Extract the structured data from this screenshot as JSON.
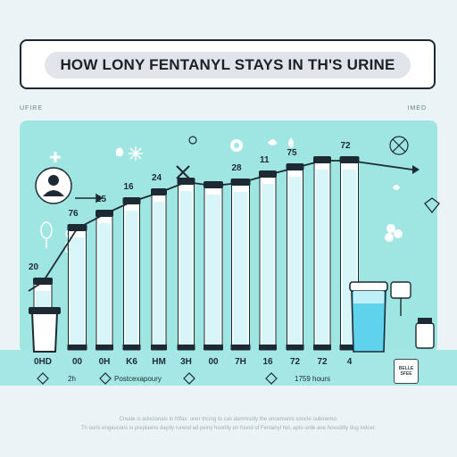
{
  "header": {
    "title": "HOW LONY FENTANYL STAYS IN TH'S URINE"
  },
  "corner_labels": {
    "left": "UFIRE",
    "right": "IMED"
  },
  "chart_data": {
    "type": "bar",
    "categories": [
      "0HD",
      "00",
      "0H",
      "K6",
      "HM",
      "3H",
      "00",
      "7H",
      "16",
      "72",
      "72",
      "4"
    ],
    "values": [
      20,
      76,
      25,
      16,
      24,
      null,
      null,
      28,
      11,
      75,
      null,
      72
    ],
    "value_labels": [
      "20",
      "76",
      "25",
      "16",
      "24",
      "",
      "",
      "28",
      "11",
      "75",
      "",
      "72"
    ],
    "title": "HOW LONY FENTANYL STAYS IN TH'S URINE",
    "xlabel": "",
    "ylabel": "",
    "ylim": [
      0,
      80
    ],
    "grid": false
  },
  "sublabels": {
    "left": "2h",
    "mid": "Postcexapoury",
    "right": "1759 hours"
  },
  "footnotes": [
    "Create is adocionals in frtfas: uner tncing to cas dammsdly the uncemanis soncle oubinemo.",
    "Th ourls engascons is preplaens daydy rurend ad peiny hourilly en fosnd of Fentanyl hol, aptu urde ane hossditly dug indcer."
  ],
  "badge_text": "BELLE SFEE",
  "colors": {
    "panel": "#9fe6e3",
    "liquid": "#6ed7f2",
    "outline": "#1e2a33",
    "title_bg": "#e1e4e8"
  }
}
